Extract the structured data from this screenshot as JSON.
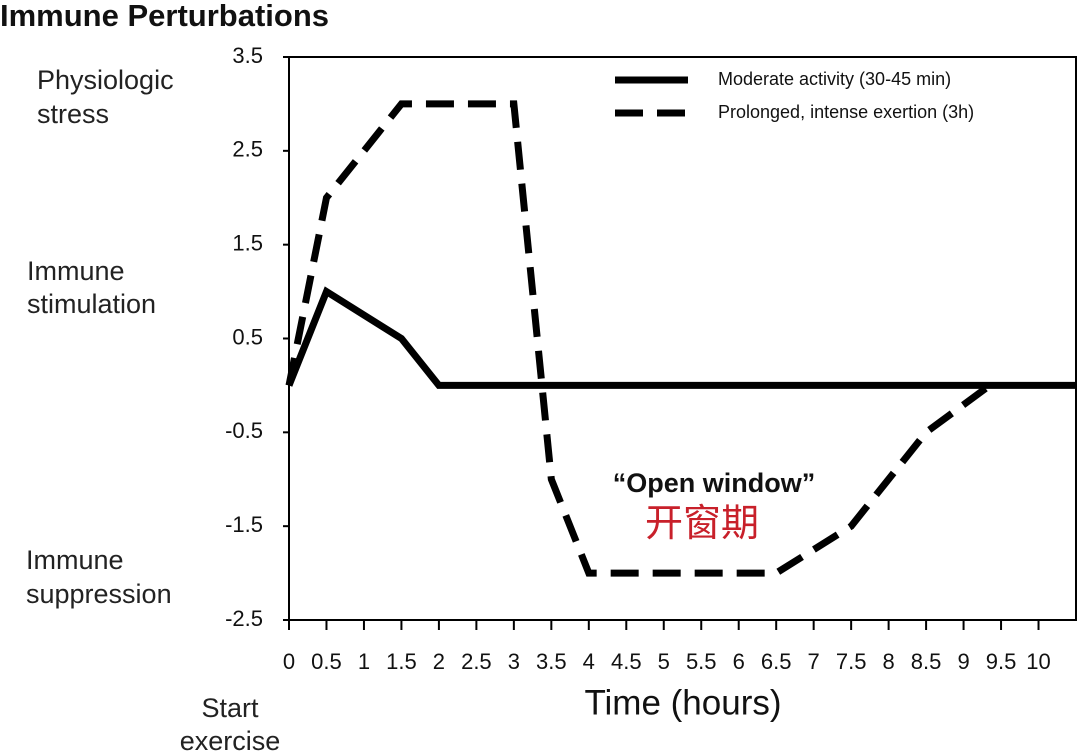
{
  "chart_data": {
    "type": "line",
    "title": "Immune Perturbations",
    "xlabel": "Time (hours)",
    "annotations": {
      "stress": [
        "Physiologic",
        "stress"
      ],
      "stimulation": [
        "Immune",
        "stimulation"
      ],
      "suppression": [
        "Immune",
        "suppression"
      ],
      "start": [
        "Start",
        "exercise"
      ],
      "window": "“Open window”",
      "window_cn": "开窗期"
    },
    "xlim": [
      0,
      10.5
    ],
    "ylim": [
      -2.5,
      3.5
    ],
    "xticks": [
      0,
      0.5,
      1,
      1.5,
      2,
      2.5,
      3,
      3.5,
      4,
      4.5,
      5,
      5.5,
      6,
      6.5,
      7,
      7.5,
      8,
      8.5,
      9,
      9.5,
      10
    ],
    "yticks": [
      3.5,
      2.5,
      1.5,
      0.5,
      -0.5,
      -1.5,
      -2.5
    ],
    "series": [
      {
        "name": "Moderate activity (30-45 min)",
        "color": "#000000",
        "dash": false,
        "x": [
          0,
          0.5,
          1.5,
          2,
          10.5
        ],
        "values": [
          0,
          1,
          0.5,
          0,
          0
        ]
      },
      {
        "name": "Prolonged, intense exertion (3h)",
        "color": "#000000",
        "dash": true,
        "x": [
          0,
          0.5,
          1.5,
          3,
          3.5,
          4,
          6.5,
          7.5,
          8.5,
          9.35
        ],
        "values": [
          0,
          2,
          3,
          3,
          -1,
          -2,
          -2,
          -1.5,
          -0.5,
          0
        ]
      }
    ]
  }
}
